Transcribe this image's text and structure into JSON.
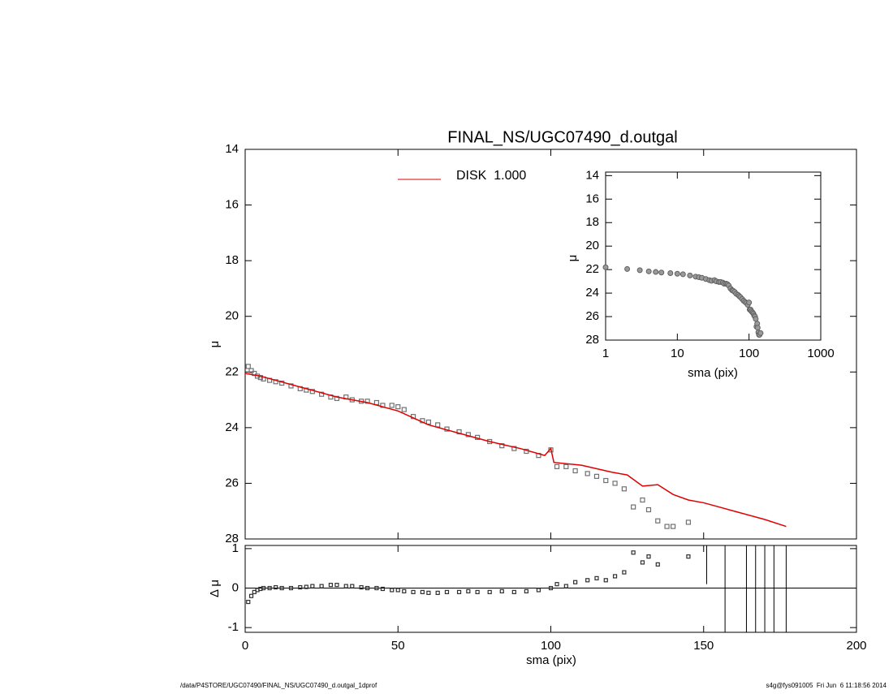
{
  "chart_data": [
    {
      "type": "profile",
      "title": "FINAL_NS/UGC07490_d.outgal",
      "ylabel": "μ",
      "xlim": [
        0,
        200
      ],
      "xticks": [
        0,
        50,
        100,
        150,
        200
      ],
      "ylim": [
        28,
        14
      ],
      "yticks": [
        14,
        16,
        18,
        20,
        22,
        24,
        26,
        28
      ],
      "series": [
        {
          "color": "#707070",
          "marker": "square",
          "x": [
            1,
            2,
            3,
            4,
            5,
            6,
            8,
            10,
            12,
            15,
            18,
            20,
            22,
            25,
            28,
            30,
            33,
            35,
            38,
            40,
            43,
            45,
            48,
            50,
            52,
            55,
            58,
            60,
            63,
            66,
            70,
            73,
            76,
            80,
            84,
            88,
            92,
            96,
            100,
            102,
            105,
            108,
            112,
            115,
            118,
            121,
            124,
            127,
            130,
            132,
            135,
            138,
            140,
            145
          ],
          "values": [
            21.8,
            21.95,
            22.05,
            22.15,
            22.2,
            22.25,
            22.3,
            22.35,
            22.4,
            22.5,
            22.6,
            22.65,
            22.7,
            22.8,
            22.9,
            22.95,
            22.9,
            23.0,
            23.05,
            23.05,
            23.1,
            23.2,
            23.2,
            23.25,
            23.35,
            23.6,
            23.75,
            23.8,
            23.9,
            24.05,
            24.15,
            24.25,
            24.35,
            24.5,
            24.65,
            24.75,
            24.85,
            25.0,
            24.8,
            25.4,
            25.4,
            25.55,
            25.65,
            25.75,
            25.9,
            26.0,
            26.2,
            26.85,
            26.6,
            26.95,
            27.35,
            27.55,
            27.55,
            27.4
          ]
        },
        {
          "name": "DISK  1.000",
          "color": "#e00000",
          "marker": "line",
          "x": [
            0,
            5,
            10,
            20,
            30,
            40,
            50,
            60,
            70,
            80,
            90,
            98,
            100,
            101,
            110,
            120,
            125,
            130,
            135,
            140,
            145,
            150,
            160,
            170,
            177
          ],
          "values": [
            22.05,
            22.15,
            22.3,
            22.6,
            22.9,
            23.1,
            23.4,
            23.9,
            24.2,
            24.5,
            24.75,
            25.0,
            24.75,
            25.25,
            25.35,
            25.6,
            25.7,
            26.1,
            26.05,
            26.4,
            26.6,
            26.7,
            27.0,
            27.3,
            27.55
          ]
        }
      ]
    },
    {
      "type": "residual",
      "ylabel": "Δ μ",
      "xlabel": "sma (pix)",
      "xlim": [
        0,
        200
      ],
      "xticks": [
        0,
        50,
        100,
        150,
        200
      ],
      "ylim": [
        -1.12,
        1.08
      ],
      "yticks": [
        -1,
        0,
        1
      ],
      "series": [
        {
          "color": "#303030",
          "x": [
            1,
            2,
            3,
            4,
            5,
            6,
            8,
            10,
            12,
            15,
            18,
            20,
            22,
            25,
            28,
            30,
            33,
            35,
            38,
            40,
            43,
            45,
            48,
            50,
            52,
            55,
            58,
            60,
            63,
            66,
            70,
            73,
            76,
            80,
            84,
            88,
            92,
            96,
            100,
            102,
            105,
            108,
            112,
            115,
            118,
            121,
            124,
            127,
            130,
            132,
            135,
            138,
            140,
            145
          ],
          "values": [
            -0.35,
            -0.2,
            -0.1,
            -0.05,
            -0.02,
            0,
            0,
            0.02,
            0,
            0,
            0.02,
            0.03,
            0.05,
            0.05,
            0.08,
            0.08,
            0.05,
            0.05,
            0.02,
            0,
            0,
            -0.02,
            -0.05,
            -0.05,
            -0.08,
            -0.1,
            -0.1,
            -0.12,
            -0.12,
            -0.1,
            -0.1,
            -0.08,
            -0.1,
            -0.1,
            -0.08,
            -0.1,
            -0.08,
            -0.05,
            0,
            0.1,
            0.05,
            0.15,
            0.2,
            0.25,
            0.2,
            0.3,
            0.4,
            0.9,
            0.65,
            0.8,
            0.6,
            null,
            null,
            0.8
          ]
        },
        {
          "color": "#000000",
          "x": [
            151,
            157,
            164,
            167,
            170,
            173,
            177
          ],
          "values": [
            0.6,
            0,
            0,
            0,
            0,
            0,
            0
          ],
          "errors": [
            0.5,
            1.2,
            1.2,
            1.2,
            1.2,
            1.2,
            1.2
          ]
        }
      ]
    },
    {
      "type": "inset",
      "xlabel": "sma (pix)",
      "ylabel": "μ",
      "log_x": true,
      "line_color": "#000000",
      "xlim": [
        1,
        1000
      ],
      "xticks": [
        1,
        10,
        100,
        1000
      ],
      "ylim": [
        28,
        13.7
      ],
      "yticks": [
        14,
        16,
        18,
        20,
        22,
        24,
        26,
        28
      ]
    }
  ],
  "footer": {
    "left": "/data/P4STORE/UGC07490/FINAL_NS/UGC07490_d.outgal_1dprof",
    "right": "s4g@fys091005  Fri Jun  6 11:18:56 2014"
  }
}
